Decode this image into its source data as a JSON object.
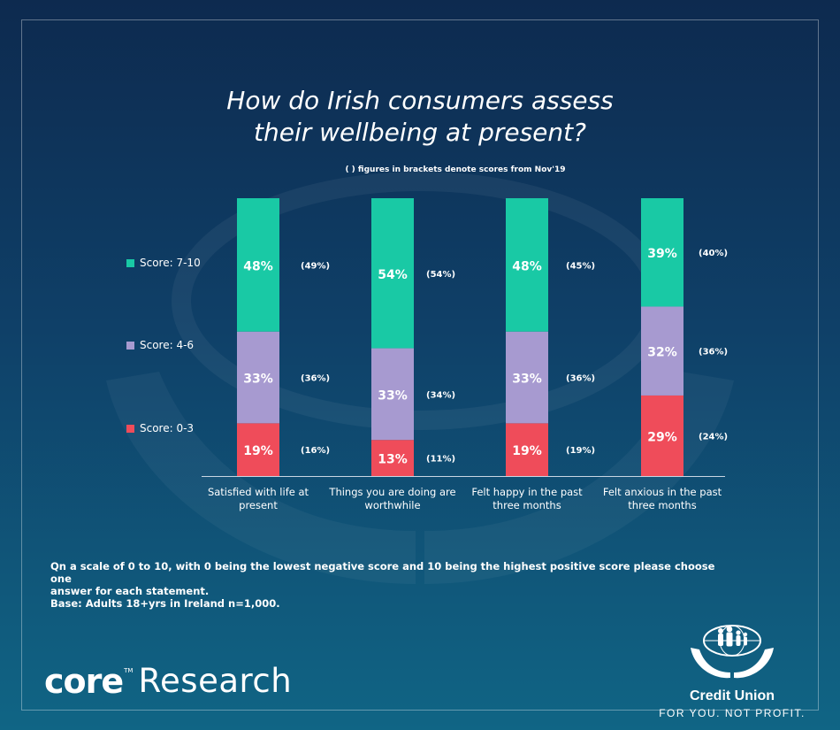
{
  "title_line1": "How do Irish consumers assess",
  "title_line2": "their wellbeing at present?",
  "subtitle": "( ) figures in brackets denote scores from Nov'19",
  "legend": [
    {
      "label": "Score: 7-10",
      "color": "#19c9a5"
    },
    {
      "label": "Score: 4-6",
      "color": "#a79ad0"
    },
    {
      "label": "Score: 0-3",
      "color": "#ef4c5a"
    }
  ],
  "chart_data": {
    "type": "bar",
    "stacked": true,
    "categories": [
      [
        "Satisfied with life at",
        "present"
      ],
      [
        "Things you are doing are",
        "worthwhile"
      ],
      [
        "Felt happy in the past",
        "three months"
      ],
      [
        "Felt anxious in the past",
        "three months"
      ]
    ],
    "series": [
      {
        "name": "Score: 0-3",
        "color": "#ef4c5a",
        "values": [
          19,
          13,
          19,
          29
        ],
        "previous": [
          "(16%)",
          "(11%)",
          "(19%)",
          "(24%)"
        ]
      },
      {
        "name": "Score: 4-6",
        "color": "#a79ad0",
        "values": [
          33,
          33,
          33,
          32
        ],
        "previous": [
          "(36%)",
          "(34%)",
          "(36%)",
          "(36%)"
        ]
      },
      {
        "name": "Score: 7-10",
        "color": "#19c9a5",
        "values": [
          48,
          54,
          48,
          39
        ],
        "previous": [
          "(49%)",
          "(54%)",
          "(45%)",
          "(40%)"
        ]
      }
    ],
    "value_suffix": "%",
    "ylim": [
      0,
      100
    ],
    "grid": false,
    "legend_position": "left"
  },
  "note_line1": "Qn a scale of 0 to 10, with 0 being the lowest negative score and 10 being the highest positive score please choose one",
  "note_line2": "answer for each statement.",
  "note_line3": "Base: Adults 18+yrs in Ireland n=1,000.",
  "brand": {
    "core": "core",
    "tm": "TM",
    "research": "Research"
  },
  "credit_union": {
    "name": "Credit Union",
    "tagline": "FOR YOU. NOT PROFIT."
  }
}
